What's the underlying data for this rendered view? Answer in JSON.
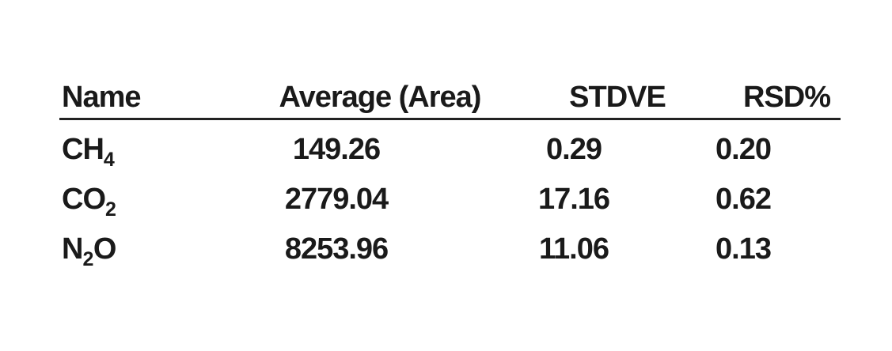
{
  "colors": {
    "background": "#ffffff",
    "text": "#1a1a1a",
    "rule": "#222222"
  },
  "table": {
    "columns": [
      "Name",
      "Average (Area)",
      "STDVE",
      "RSD%"
    ],
    "rows": [
      {
        "name": [
          {
            "text": "CH"
          },
          {
            "text": "4",
            "subscript": true
          }
        ],
        "average": "149.26",
        "stdve": "0.29",
        "rsd": "0.20"
      },
      {
        "name": [
          {
            "text": "CO"
          },
          {
            "text": "2",
            "subscript": true
          }
        ],
        "average": "2779.04",
        "stdve": "17.16",
        "rsd": "0.62"
      },
      {
        "name": [
          {
            "text": "N"
          },
          {
            "text": "2",
            "subscript": true
          },
          {
            "text": "O"
          }
        ],
        "average": "8253.96",
        "stdve": "11.06",
        "rsd": "0.13"
      }
    ]
  }
}
